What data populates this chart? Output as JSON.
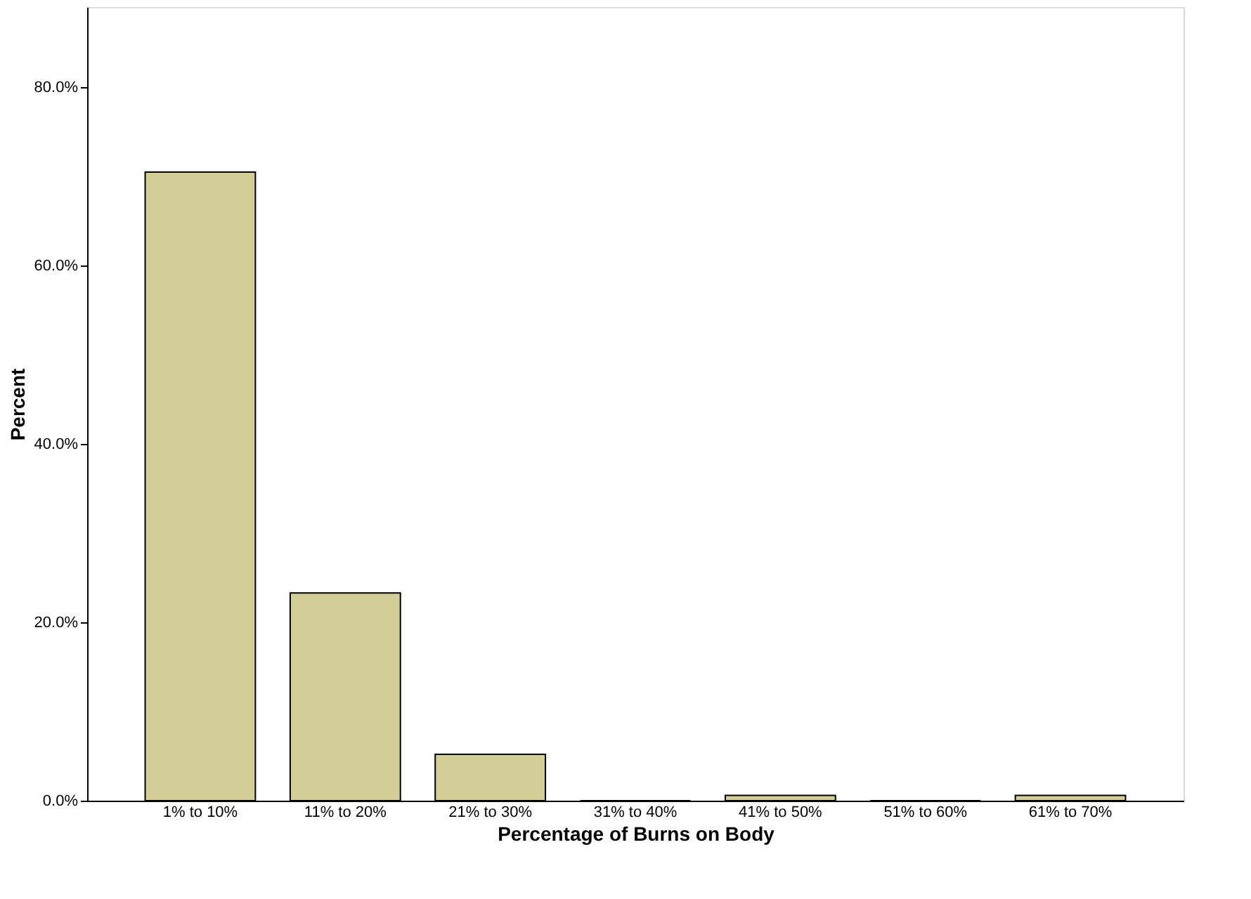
{
  "chart_data": {
    "type": "bar",
    "xlabel": "Percentage of Burns on Body",
    "ylabel": "Percent",
    "categories": [
      "1% to 10%",
      "11% to 20%",
      "21% to 30%",
      "31% to 40%",
      "41% to 50%",
      "51% to 60%",
      "61% to 70%"
    ],
    "values": [
      70.5,
      23.3,
      5.2,
      0,
      0.6,
      0,
      0.6
    ],
    "color": "#d3ce98",
    "ylim": [
      0,
      89
    ],
    "yticks": [
      {
        "value": 0,
        "label": "0.0%"
      },
      {
        "value": 20,
        "label": "20.0%"
      },
      {
        "value": 40,
        "label": "40.0%"
      },
      {
        "value": 60,
        "label": "60.0%"
      },
      {
        "value": 80,
        "label": "80.0%"
      }
    ],
    "grid": false
  }
}
